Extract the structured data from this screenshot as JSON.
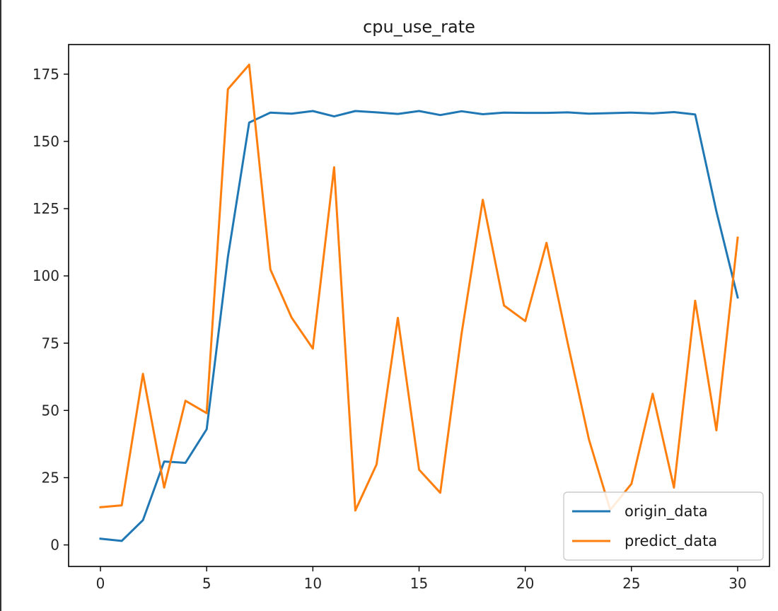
{
  "chart_data": {
    "type": "line",
    "title": "cpu_use_rate",
    "xlabel": "",
    "ylabel": "",
    "xlim": [
      -1.5,
      31.5
    ],
    "ylim": [
      -8,
      186
    ],
    "xticks": [
      0,
      5,
      10,
      15,
      20,
      25,
      30
    ],
    "yticks": [
      0,
      25,
      50,
      75,
      100,
      125,
      150,
      175
    ],
    "grid": false,
    "legend_position": "lower-right",
    "x": [
      0,
      1,
      2,
      3,
      4,
      5,
      6,
      7,
      8,
      9,
      10,
      11,
      12,
      13,
      14,
      15,
      16,
      17,
      18,
      19,
      20,
      21,
      22,
      23,
      24,
      25,
      26,
      27,
      28,
      29,
      30
    ],
    "series": [
      {
        "name": "origin_data",
        "color": "#1f77b4",
        "values": [
          2.3,
          1.5,
          9.2,
          31,
          30.5,
          43,
          107,
          157,
          160.7,
          160.3,
          161.3,
          159.3,
          161.3,
          160.8,
          160.2,
          161.3,
          159.8,
          161.2,
          160.1,
          160.7,
          160.6,
          160.6,
          160.8,
          160.3,
          160.5,
          160.7,
          160.4,
          160.9,
          160,
          124,
          92
        ]
      },
      {
        "name": "predict_data",
        "color": "#ff7f0e",
        "values": [
          14,
          14.7,
          63.6,
          21.3,
          53.6,
          49,
          169.4,
          178.5,
          102.4,
          84.5,
          73,
          140.4,
          12.8,
          29.9,
          84.4,
          28,
          19.4,
          78.5,
          128.3,
          89,
          83.2,
          112.3,
          75,
          39.2,
          13,
          22.7,
          56.2,
          21.3,
          90.8,
          42.6,
          114.2
        ]
      }
    ]
  }
}
